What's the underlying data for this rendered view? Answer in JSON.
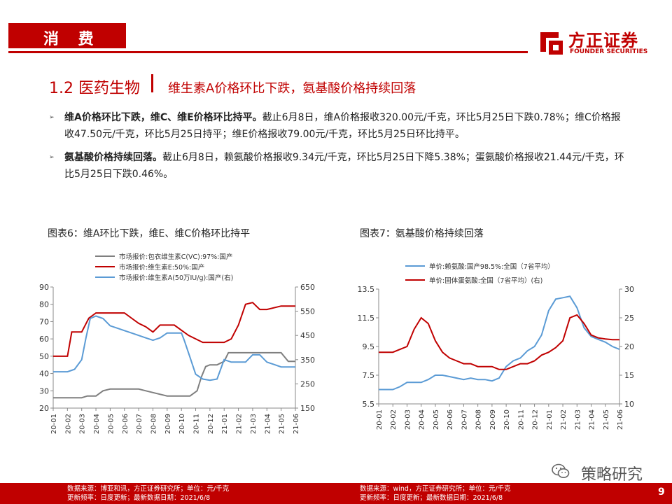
{
  "header": {
    "tag": "消 费",
    "logo_cn": "方正证券",
    "logo_en": "FOUNDER SECURITIES"
  },
  "section": {
    "number_title": "1.2 医药生物",
    "separator": "|",
    "subtitle": "维生素A价格环比下跌，氨基酸价格持续回落"
  },
  "bullets": [
    {
      "bold": "维A价格环比下跌，维C、维E价格环比持平。",
      "text": "截止6月8日，维A价格报收320.00元/千克，环比5月25日下跌0.78%；维C价格报收47.50元/千克，环比5月25日持平；维E价格报收79.00元/千克，环比5月25日环比持平。"
    },
    {
      "bold": "氨基酸价格持续回落。",
      "text": "截止6月8日，赖氨酸价格报收9.34元/千克，环比5月25日下降5.38%；蛋氨酸价格报收21.44元/千克，环比5月25日下跌0.46%。"
    }
  ],
  "figures": [
    {
      "title": "图表6：维A环比下跌，维E、维C价格环比持平",
      "source_line1": "数据来源：博亚和讯，方正证券研究所；单位：元/千克",
      "source_line2": "更新频率：日度更新；最新数据日期：2021/6/8"
    },
    {
      "title": "图表7：氨基酸价格持续回落",
      "source_line1": "数据来源：wind，方正证券研究所；单位：元/千克",
      "source_line2": "更新频率：日度更新；最新数据日期：2021/6/8"
    }
  ],
  "wechat_label": "策略研究",
  "page_number": "9",
  "colors": {
    "brand": "#c00000",
    "vc": "#7f7f7f",
    "ve": "#c00000",
    "va": "#5b9bd5"
  },
  "chart_data": [
    {
      "type": "line",
      "title": "",
      "x_ticks": [
        "20-01",
        "20-02",
        "20-03",
        "20-04",
        "20-05",
        "20-06",
        "20-07",
        "20-08",
        "20-09",
        "20-10",
        "20-11",
        "20-12",
        "21-01",
        "21-02",
        "21-03",
        "21-04",
        "21-05",
        "21-06"
      ],
      "ylim_left": [
        20,
        90
      ],
      "yticks_left": [
        20,
        30,
        40,
        50,
        60,
        70,
        80,
        90
      ],
      "ylim_right": [
        150,
        650
      ],
      "yticks_right": [
        150,
        250,
        350,
        450,
        550,
        650
      ],
      "legend_position": "top",
      "series": [
        {
          "name": "市场报价:包衣维生素C(VC):97%:国产",
          "axis": "left",
          "color_key": "vc",
          "x": [
            0,
            2,
            2.4,
            3,
            3.5,
            4,
            5,
            6,
            6.5,
            7,
            8,
            9,
            9.6,
            10.1,
            10.4,
            10.7,
            11,
            11.5,
            12,
            12.3,
            12.5,
            13,
            14,
            15,
            16,
            16.5,
            17
          ],
          "y": [
            26,
            26,
            27,
            27,
            30,
            31,
            31,
            31,
            30,
            29,
            27,
            27,
            27,
            30,
            38,
            44,
            45,
            45,
            47,
            52,
            52,
            52,
            52,
            52,
            52,
            47,
            47
          ]
        },
        {
          "name": "市场报价:维生素E:50%:国产",
          "axis": "left",
          "color_key": "ve",
          "x": [
            0,
            1,
            1.3,
            2,
            2.5,
            3,
            4,
            5,
            5.5,
            6,
            6.5,
            7,
            7.5,
            8,
            8.5,
            9,
            9.5,
            10,
            10.5,
            11,
            11.5,
            12,
            12.5,
            13,
            13.5,
            14,
            14.5,
            15,
            16,
            17
          ],
          "y": [
            50,
            50,
            64,
            64,
            72,
            75,
            75,
            75,
            72,
            69,
            67,
            64,
            68,
            68,
            68,
            65,
            62,
            60,
            58,
            58,
            58,
            58,
            60,
            68,
            80,
            81,
            77,
            77,
            79,
            79
          ]
        },
        {
          "name": "市场报价:维生素A(50万IU/g):国产(右)",
          "axis": "right",
          "color_key": "va",
          "x": [
            0,
            1,
            1.5,
            2,
            2.3,
            2.6,
            3,
            3.5,
            4,
            4.5,
            5,
            5.5,
            6,
            6.5,
            7,
            7.5,
            8,
            9,
            9.2,
            9.6,
            10,
            10.5,
            11,
            11.5,
            12,
            12.5,
            13,
            13.5,
            14,
            14.5,
            15,
            15.5,
            16,
            17
          ],
          "y": [
            300,
            300,
            310,
            350,
            440,
            520,
            530,
            520,
            490,
            480,
            470,
            460,
            450,
            440,
            430,
            440,
            460,
            460,
            430,
            360,
            290,
            270,
            265,
            270,
            350,
            340,
            340,
            340,
            370,
            370,
            340,
            330,
            320,
            320
          ]
        }
      ]
    },
    {
      "type": "line",
      "title": "",
      "x_ticks": [
        "20-01",
        "20-02",
        "20-03",
        "20-04",
        "20-05",
        "20-06",
        "20-07",
        "20-08",
        "20-09",
        "20-10",
        "20-11",
        "20-12",
        "21-01",
        "21-02",
        "21-03",
        "21-04",
        "21-05",
        "21-06"
      ],
      "ylim_left": [
        5.5,
        13.5
      ],
      "yticks_left": [
        "5.5",
        "7.5",
        "9.5",
        "11.5",
        "13.5"
      ],
      "ylim_right": [
        10,
        30
      ],
      "yticks_right": [
        10,
        15,
        20,
        25,
        30
      ],
      "legend_position": "top",
      "series": [
        {
          "name": "单价:赖氨酸:国产98.5%:全国（7省平均）",
          "axis": "left",
          "color_key": "va",
          "x": [
            0,
            1,
            1.5,
            2,
            2.5,
            3,
            3.5,
            4,
            4.5,
            5,
            5.5,
            6,
            6.5,
            7,
            7.5,
            8,
            8.5,
            9,
            9.5,
            10,
            10.5,
            11,
            11.5,
            12,
            12.5,
            13,
            13.5,
            14,
            14.5,
            15,
            15.5,
            16,
            16.5,
            17
          ],
          "y": [
            6.5,
            6.5,
            6.7,
            7.0,
            7.0,
            7.0,
            7.2,
            7.5,
            7.5,
            7.4,
            7.3,
            7.2,
            7.3,
            7.2,
            7.2,
            7.1,
            7.3,
            8.1,
            8.5,
            8.7,
            9.2,
            9.5,
            10.3,
            12.0,
            12.8,
            12.9,
            13.0,
            12.2,
            10.8,
            10.2,
            10.0,
            9.8,
            9.5,
            9.3
          ]
        },
        {
          "name": "单价:固体蛋氨酸:全国（7省平均）(右)",
          "axis": "right",
          "color_key": "ve",
          "x": [
            0,
            1,
            1.5,
            2,
            2.5,
            3,
            3.5,
            4,
            4.5,
            5,
            5.5,
            6,
            6.5,
            7,
            7.5,
            8,
            8.5,
            9,
            9.5,
            10,
            10.5,
            11,
            11.5,
            12,
            12.5,
            13,
            13.5,
            14,
            14.5,
            15,
            15.5,
            16,
            16.5,
            17
          ],
          "y": [
            19,
            19,
            19.5,
            20,
            23,
            25,
            24,
            21,
            19,
            18,
            17.5,
            17,
            17,
            16.5,
            16.5,
            16.5,
            16,
            16,
            16.5,
            17,
            17,
            17.5,
            18.5,
            19,
            19.8,
            21,
            25,
            25.5,
            24,
            22,
            21.5,
            21.3,
            21.2,
            21.2
          ]
        }
      ]
    }
  ]
}
